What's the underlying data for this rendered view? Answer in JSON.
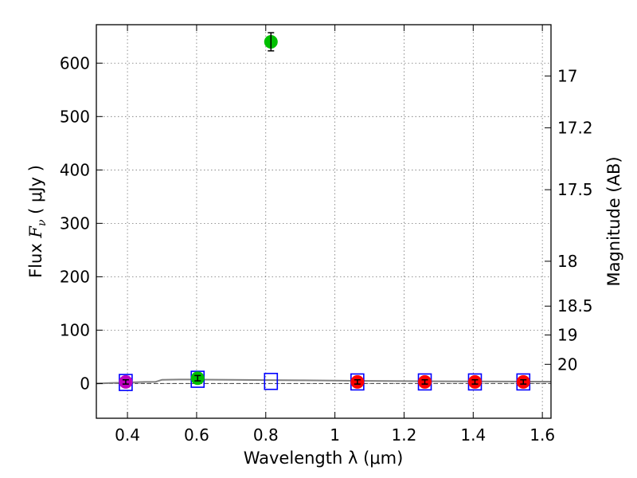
{
  "chart_data": {
    "type": "scatter",
    "xlabel": "Wavelength  λ (μm)",
    "ylabel_prefix": "Flux  ",
    "ylabel_var": "F",
    "ylabel_sub": "ν",
    "ylabel_unit": "  ( μJy )",
    "y2label": "Magnitude (AB)",
    "xlim": [
      0.31,
      1.625
    ],
    "ylim": [
      -65,
      672
    ],
    "grid": true,
    "xticks": [
      0.4,
      0.6,
      0.8,
      1.0,
      1.2,
      1.4,
      1.6
    ],
    "xtick_labels": [
      "0.4",
      "0.6",
      "0.8",
      "1",
      "1.2",
      "1.4",
      "1.6"
    ],
    "yticks": [
      0,
      100,
      200,
      300,
      400,
      500,
      600
    ],
    "ytick_labels": [
      "0",
      "100",
      "200",
      "300",
      "400",
      "500",
      "600"
    ],
    "mag_ticks": [
      {
        "label": "17",
        "flux": 576
      },
      {
        "label": "17.2",
        "flux": 479
      },
      {
        "label": "17.5",
        "flux": 363
      },
      {
        "label": "18",
        "flux": 229
      },
      {
        "label": "18.5",
        "flux": 145
      },
      {
        "label": "19",
        "flux": 91
      },
      {
        "label": "20",
        "flux": 36
      }
    ],
    "photometry": [
      {
        "x": 0.395,
        "y": 3,
        "err": 4,
        "color": "#bf00bf"
      },
      {
        "x": 0.603,
        "y": 10,
        "err": 5,
        "color": "#00bf00"
      },
      {
        "x": 0.815,
        "y": 640,
        "err": 17,
        "color": "#00bf00"
      },
      {
        "x": 1.065,
        "y": 3,
        "err": 4,
        "color": "#ff0000"
      },
      {
        "x": 1.26,
        "y": 3,
        "err": 4,
        "color": "#ff0000"
      },
      {
        "x": 1.405,
        "y": 3,
        "err": 4,
        "color": "#ff0000"
      },
      {
        "x": 1.545,
        "y": 3,
        "err": 4,
        "color": "#ff0000"
      }
    ],
    "model_points": [
      {
        "x": 0.395,
        "y": 2
      },
      {
        "x": 0.603,
        "y": 8
      },
      {
        "x": 0.815,
        "y": 4
      },
      {
        "x": 1.065,
        "y": 3
      },
      {
        "x": 1.26,
        "y": 3
      },
      {
        "x": 1.405,
        "y": 3
      },
      {
        "x": 1.545,
        "y": 3
      }
    ],
    "sed_model": {
      "x": [
        0.31,
        0.35,
        0.4,
        0.45,
        0.48,
        0.49,
        0.5,
        0.55,
        0.6,
        0.7,
        0.8,
        0.9,
        1.0,
        1.1,
        1.2,
        1.3,
        1.4,
        1.5,
        1.625
      ],
      "y": [
        0,
        1,
        2,
        3,
        3,
        5,
        7,
        7.5,
        7.5,
        7,
        6.5,
        6,
        5.5,
        5,
        4.5,
        4.2,
        4,
        3.8,
        3.5
      ]
    },
    "zero_line": 0,
    "colors": {
      "model_point": "#0000ff",
      "sed": "#808080"
    }
  }
}
